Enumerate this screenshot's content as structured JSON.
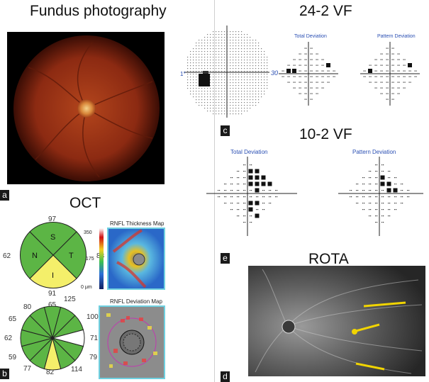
{
  "titles": {
    "fundus": "Fundus photography",
    "vf242": "24-2 VF",
    "vf102": "10-2 VF",
    "oct": "OCT",
    "rota": "ROTA"
  },
  "panel_letters": {
    "a": "a",
    "b": "b",
    "c": "c",
    "d": "d",
    "e": "e"
  },
  "vf242": {
    "scale_left": "1°",
    "scale_right": "30",
    "total_deviation": "Total Deviation",
    "pattern_deviation": "Pattern Deviation"
  },
  "vf102": {
    "total_deviation": "Total Deviation",
    "pattern_deviation": "Pattern Deviation"
  },
  "oct": {
    "quadrant": {
      "top": "97",
      "left": "62",
      "right": "83",
      "bottom": "91",
      "S": "S",
      "N": "N",
      "T": "T",
      "I": "I"
    },
    "clock": {
      "c1": "65",
      "c2": "125",
      "c3": "80",
      "c4": "100",
      "c5": "65",
      "c6": "71",
      "c7": "62",
      "c8": "79",
      "c9": "59",
      "c10": "114",
      "c11": "77",
      "c12": "82"
    },
    "thickness_map": {
      "title": "RNFL Thickness Map",
      "s350": "350",
      "s175": "175",
      "s0": "0 μm"
    },
    "deviation_map": {
      "title": "RNFL Deviation Map"
    }
  },
  "colors": {
    "green": "#5cb545",
    "yellow": "#f4ef6a",
    "white": "#ffffff",
    "blue_label": "#2a4fb3"
  }
}
